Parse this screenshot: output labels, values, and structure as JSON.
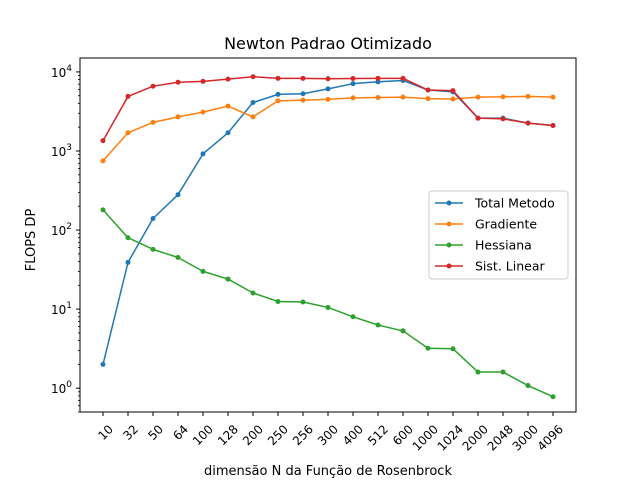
{
  "chart_data": {
    "type": "line",
    "title": "Newton Padrao Otimizado",
    "xlabel": "dimensão N da Função de Rosenbrock",
    "ylabel": "FLOPS DP",
    "yscale": "log",
    "ylim": [
      0.5,
      15000
    ],
    "legend_position": "center-right",
    "categories": [
      "10",
      "32",
      "50",
      "64",
      "100",
      "128",
      "200",
      "250",
      "256",
      "300",
      "400",
      "512",
      "600",
      "1000",
      "1024",
      "2000",
      "2048",
      "3000",
      "4096"
    ],
    "y_ticks": [
      {
        "value": 1,
        "base": "10",
        "exp": "0"
      },
      {
        "value": 10,
        "base": "10",
        "exp": "1"
      },
      {
        "value": 100,
        "base": "10",
        "exp": "2"
      },
      {
        "value": 1000,
        "base": "10",
        "exp": "3"
      },
      {
        "value": 10000,
        "base": "10",
        "exp": "4"
      }
    ],
    "series": [
      {
        "name": "Total Metodo",
        "color": "#1f77b4",
        "values": [
          2,
          39,
          140,
          280,
          920,
          1700,
          4100,
          5200,
          5300,
          6100,
          7100,
          7500,
          7800,
          5900,
          5600,
          2600,
          2600,
          2250,
          2100
        ]
      },
      {
        "name": "Gradiente",
        "color": "#ff7f0e",
        "values": [
          750,
          1700,
          2300,
          2700,
          3100,
          3700,
          2700,
          4300,
          4400,
          4500,
          4700,
          4750,
          4800,
          4600,
          4550,
          4800,
          4850,
          4900,
          4800
        ]
      },
      {
        "name": "Hessiana",
        "color": "#2ca02c",
        "values": [
          180,
          80,
          57,
          45,
          30,
          24,
          16,
          12.5,
          12.3,
          10.5,
          8,
          6.3,
          5.3,
          3.2,
          3.15,
          1.6,
          1.6,
          1.08,
          0.78
        ]
      },
      {
        "name": "Sist. Linear",
        "color": "#d62728",
        "values": [
          1350,
          4900,
          6600,
          7400,
          7600,
          8100,
          8700,
          8300,
          8300,
          8200,
          8250,
          8300,
          8300,
          5900,
          5800,
          2600,
          2550,
          2250,
          2100
        ]
      }
    ]
  }
}
